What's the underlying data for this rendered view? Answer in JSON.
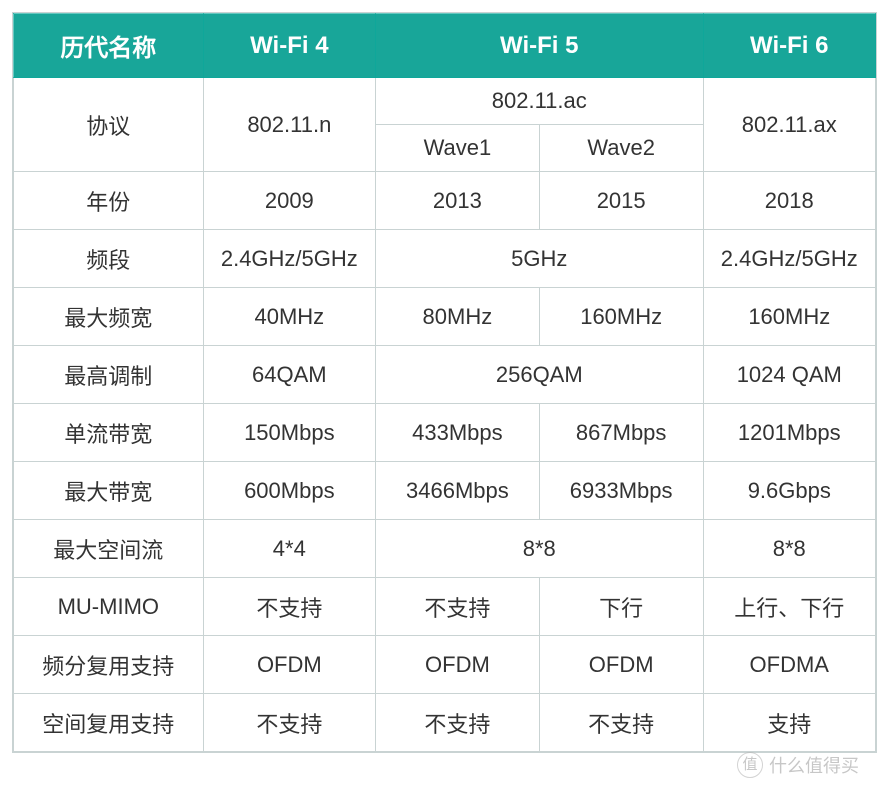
{
  "table": {
    "type": "table",
    "header_bg_color": "#18a699",
    "header_text_color": "#ffffff",
    "border_color": "#c9d3d3",
    "body_text_color": "#333333",
    "font_size_header": 24,
    "font_size_body": 22,
    "columns": [
      {
        "key": "name",
        "label": "历代名称",
        "width_ratio": 1.15
      },
      {
        "key": "wifi4",
        "label": "Wi-Fi 4",
        "width_ratio": 1
      },
      {
        "key": "wifi5a",
        "label": "Wi-Fi 5",
        "width_ratio": 1
      },
      {
        "key": "wifi5b",
        "label": "",
        "width_ratio": 1
      },
      {
        "key": "wifi6",
        "label": "Wi-Fi 6",
        "width_ratio": 1
      }
    ],
    "protocol": {
      "label": "协议",
      "wifi4": "802.11.n",
      "wifi5_top": "802.11.ac",
      "wifi5_wave1": "Wave1",
      "wifi5_wave2": "Wave2",
      "wifi6": "802.11.ax"
    },
    "rows": [
      {
        "label": "年份",
        "wifi4": "2009",
        "wifi5a": "2013",
        "wifi5b": "2015",
        "wifi6": "2018",
        "merge5": false
      },
      {
        "label": "频段",
        "wifi4": "2.4GHz/5GHz",
        "wifi5a": "5GHz",
        "wifi5b": "",
        "wifi6": "2.4GHz/5GHz",
        "merge5": true
      },
      {
        "label": "最大频宽",
        "wifi4": "40MHz",
        "wifi5a": "80MHz",
        "wifi5b": "160MHz",
        "wifi6": "160MHz",
        "merge5": false
      },
      {
        "label": "最高调制",
        "wifi4": "64QAM",
        "wifi5a": "256QAM",
        "wifi5b": "",
        "wifi6": "1024 QAM",
        "merge5": true
      },
      {
        "label": "单流带宽",
        "wifi4": "150Mbps",
        "wifi5a": "433Mbps",
        "wifi5b": "867Mbps",
        "wifi6": "1201Mbps",
        "merge5": false
      },
      {
        "label": "最大带宽",
        "wifi4": "600Mbps",
        "wifi5a": "3466Mbps",
        "wifi5b": "6933Mbps",
        "wifi6": "9.6Gbps",
        "merge5": false
      },
      {
        "label": "最大空间流",
        "wifi4": "4*4",
        "wifi5a": "8*8",
        "wifi5b": "",
        "wifi6": "8*8",
        "merge5": true
      },
      {
        "label": "MU-MIMO",
        "wifi4": "不支持",
        "wifi5a": "不支持",
        "wifi5b": "下行",
        "wifi6": "上行、下行",
        "merge5": false
      },
      {
        "label": "频分复用支持",
        "wifi4": "OFDM",
        "wifi5a": "OFDM",
        "wifi5b": "OFDM",
        "wifi6": "OFDMA",
        "merge5": false
      },
      {
        "label": "空间复用支持",
        "wifi4": "不支持",
        "wifi5a": "不支持",
        "wifi5b": "不支持",
        "wifi6": "支持",
        "merge5": false
      }
    ]
  },
  "watermark": {
    "icon_text": "值",
    "text": "什么值得买",
    "color": "#9a9a9a",
    "opacity": 0.55
  }
}
